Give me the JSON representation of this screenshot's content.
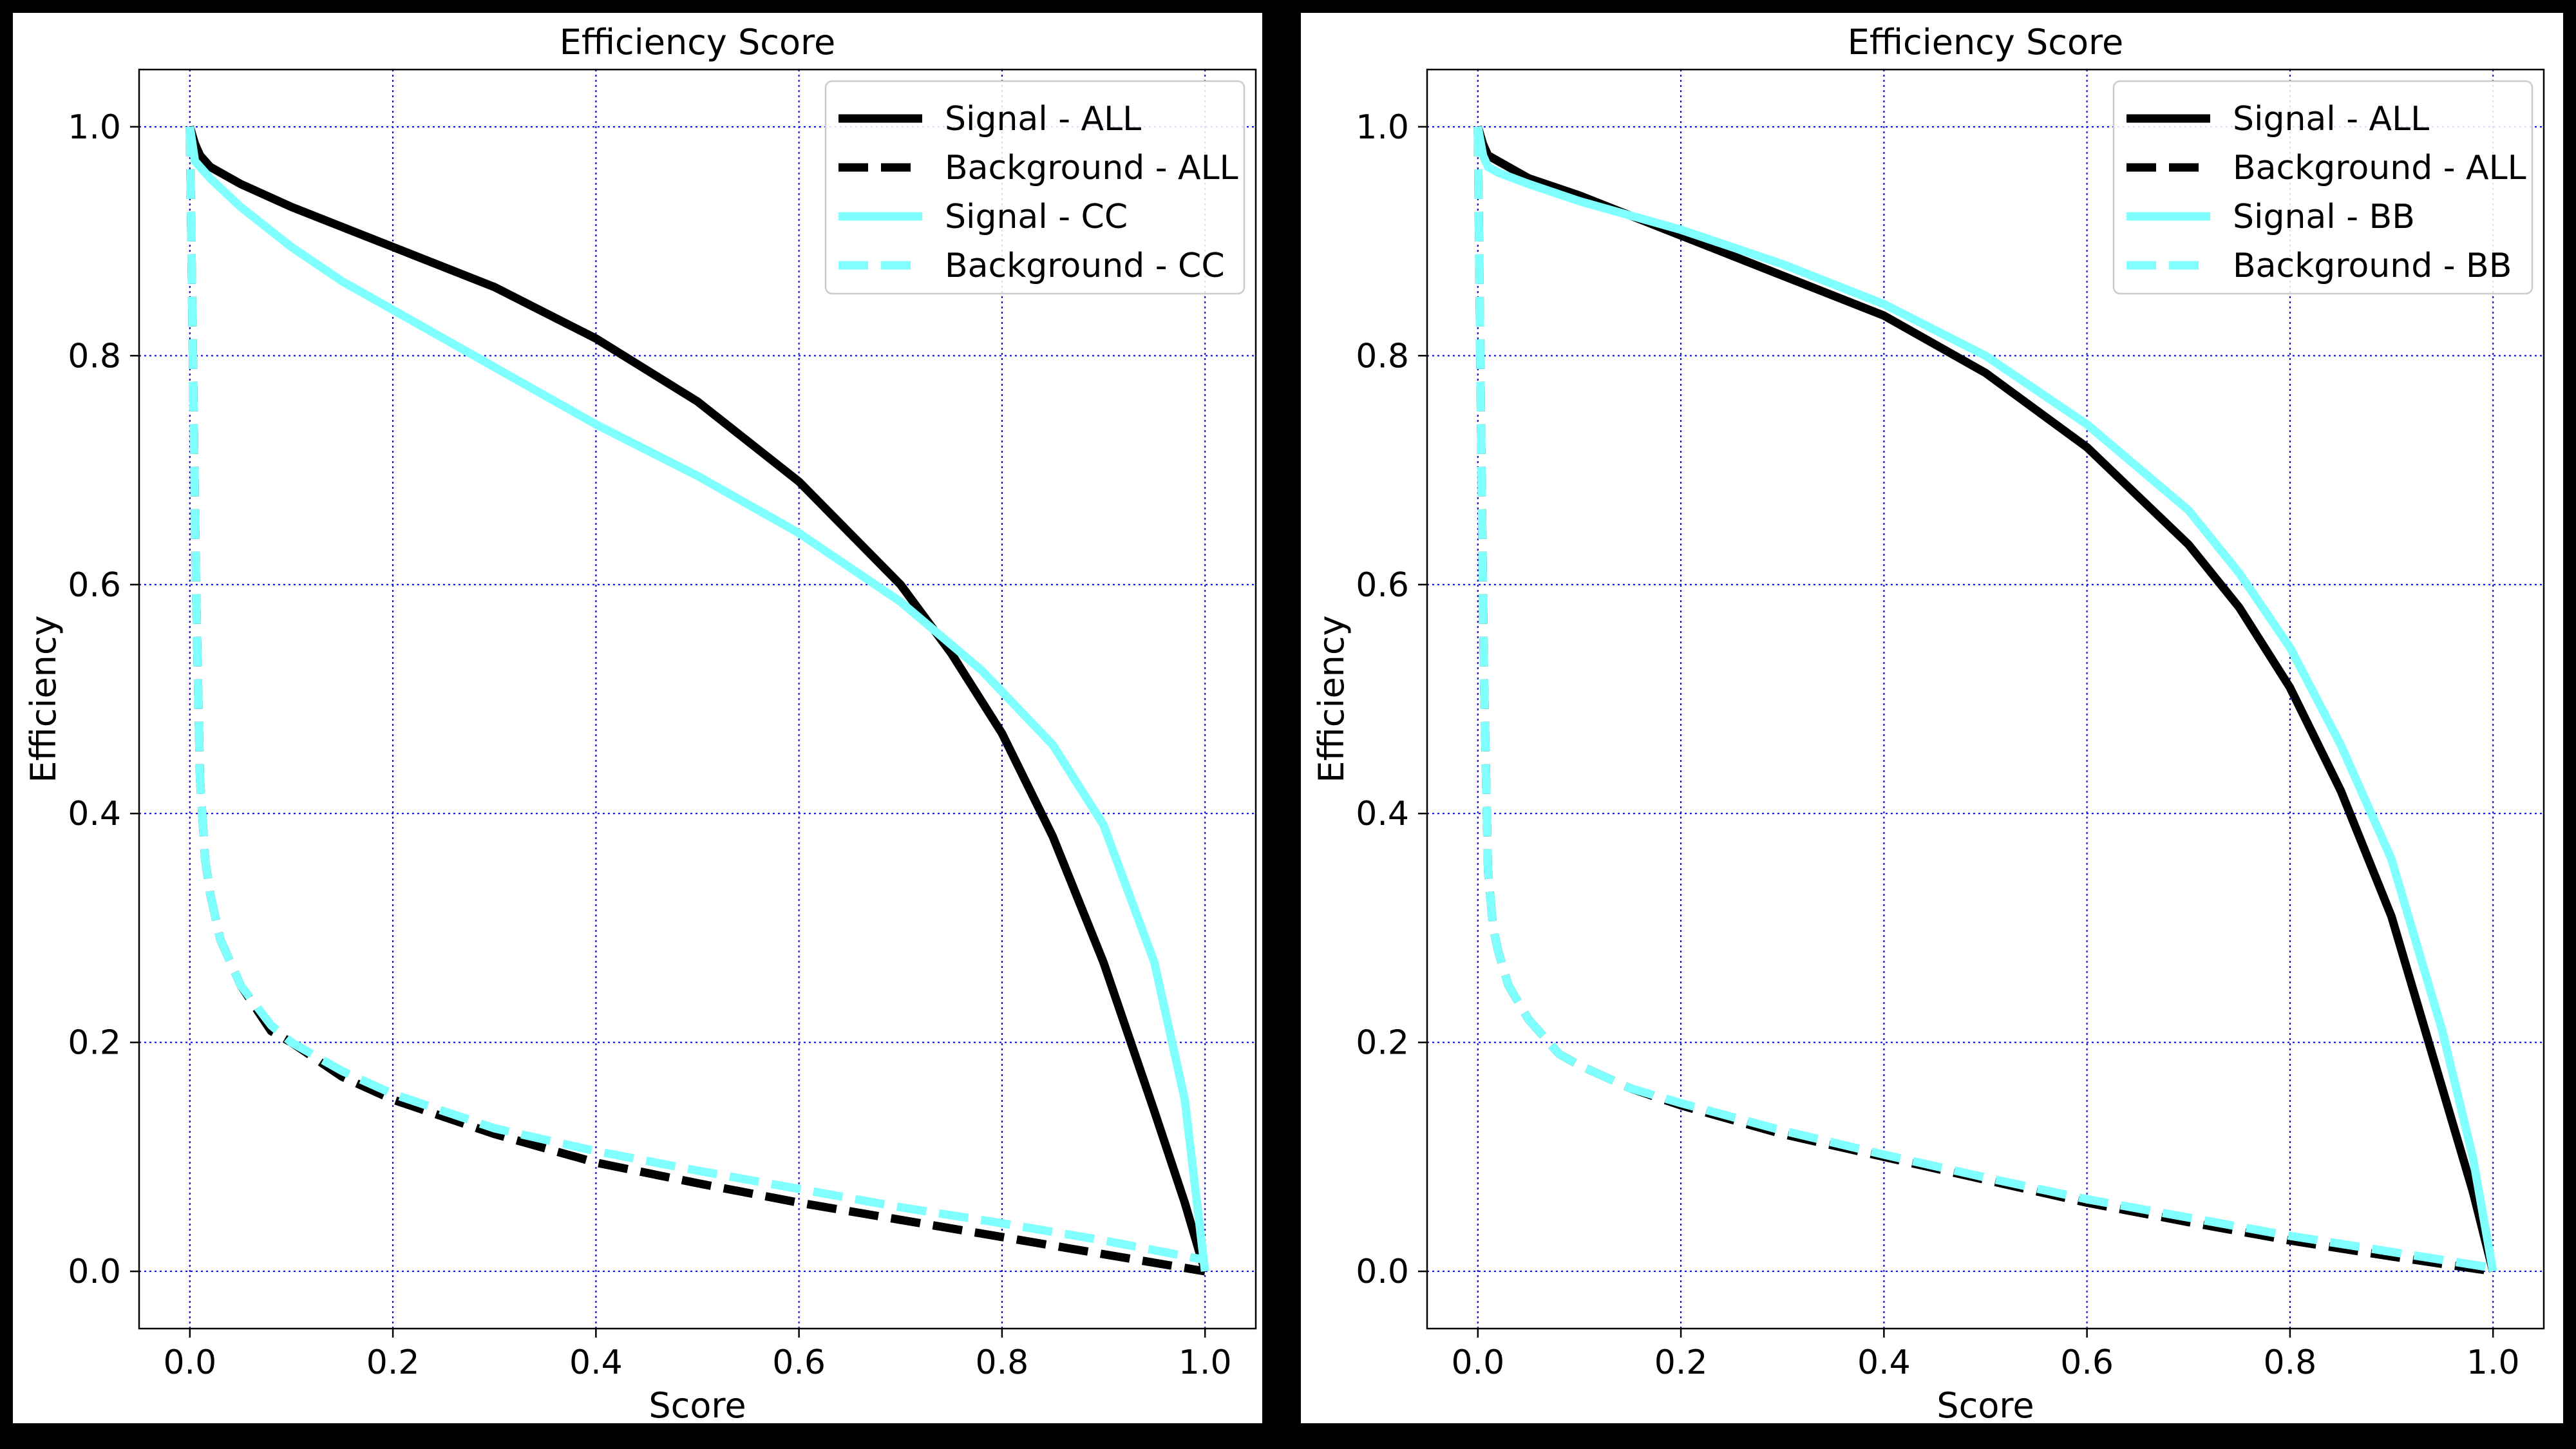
{
  "colors": {
    "all": "#000000",
    "subset": "#80ffff",
    "grid": "#0000cc"
  },
  "chart_data": [
    {
      "type": "line",
      "title": "Efficiency Score",
      "xlabel": "Score",
      "ylabel": "Efficiency",
      "xlim": [
        -0.05,
        1.05
      ],
      "ylim": [
        -0.05,
        1.05
      ],
      "xticks": [
        "0.0",
        "0.2",
        "0.4",
        "0.6",
        "0.8",
        "1.0"
      ],
      "yticks": [
        "0.0",
        "0.2",
        "0.4",
        "0.6",
        "0.8",
        "1.0"
      ],
      "grid": true,
      "legend_position": "top-right",
      "series": [
        {
          "name": "Signal - ALL",
          "color": "#000000",
          "style": "solid",
          "x": [
            0.0,
            0.005,
            0.01,
            0.02,
            0.05,
            0.1,
            0.2,
            0.3,
            0.4,
            0.5,
            0.6,
            0.7,
            0.75,
            0.8,
            0.85,
            0.9,
            0.95,
            0.98,
            1.0
          ],
          "y": [
            1.0,
            0.985,
            0.975,
            0.965,
            0.95,
            0.93,
            0.895,
            0.86,
            0.815,
            0.76,
            0.69,
            0.6,
            0.54,
            0.47,
            0.38,
            0.27,
            0.14,
            0.06,
            0.0
          ]
        },
        {
          "name": "Background - ALL",
          "color": "#000000",
          "style": "dashed",
          "x": [
            0.0,
            0.003,
            0.006,
            0.01,
            0.015,
            0.02,
            0.03,
            0.05,
            0.08,
            0.1,
            0.15,
            0.2,
            0.3,
            0.4,
            0.5,
            0.6,
            0.7,
            0.8,
            0.9,
            1.0
          ],
          "y": [
            1.0,
            0.8,
            0.6,
            0.43,
            0.36,
            0.33,
            0.29,
            0.25,
            0.21,
            0.2,
            0.17,
            0.15,
            0.12,
            0.095,
            0.077,
            0.06,
            0.045,
            0.03,
            0.015,
            0.0
          ]
        },
        {
          "name": "Signal - CC",
          "color": "#80ffff",
          "style": "solid",
          "x": [
            0.0,
            0.005,
            0.01,
            0.02,
            0.05,
            0.1,
            0.15,
            0.2,
            0.3,
            0.4,
            0.5,
            0.6,
            0.7,
            0.78,
            0.85,
            0.9,
            0.95,
            0.98,
            1.0
          ],
          "y": [
            1.0,
            0.97,
            0.965,
            0.955,
            0.93,
            0.895,
            0.865,
            0.84,
            0.79,
            0.74,
            0.695,
            0.645,
            0.585,
            0.525,
            0.46,
            0.39,
            0.27,
            0.15,
            0.0
          ]
        },
        {
          "name": "Background - CC",
          "color": "#80ffff",
          "style": "dashed",
          "x": [
            0.0,
            0.003,
            0.006,
            0.01,
            0.015,
            0.02,
            0.03,
            0.05,
            0.08,
            0.1,
            0.15,
            0.2,
            0.3,
            0.4,
            0.5,
            0.6,
            0.7,
            0.8,
            0.9,
            1.0
          ],
          "y": [
            1.0,
            0.8,
            0.6,
            0.43,
            0.36,
            0.33,
            0.29,
            0.25,
            0.215,
            0.2,
            0.175,
            0.155,
            0.125,
            0.105,
            0.088,
            0.072,
            0.056,
            0.042,
            0.027,
            0.01
          ]
        }
      ]
    },
    {
      "type": "line",
      "title": "Efficiency Score",
      "xlabel": "Score",
      "ylabel": "Efficiency",
      "xlim": [
        -0.05,
        1.05
      ],
      "ylim": [
        -0.05,
        1.05
      ],
      "xticks": [
        "0.0",
        "0.2",
        "0.4",
        "0.6",
        "0.8",
        "1.0"
      ],
      "yticks": [
        "0.0",
        "0.2",
        "0.4",
        "0.6",
        "0.8",
        "1.0"
      ],
      "grid": true,
      "legend_position": "top-right",
      "series": [
        {
          "name": "Signal - ALL",
          "color": "#000000",
          "style": "solid",
          "x": [
            0.0,
            0.005,
            0.01,
            0.02,
            0.05,
            0.1,
            0.2,
            0.3,
            0.4,
            0.5,
            0.6,
            0.7,
            0.75,
            0.8,
            0.85,
            0.9,
            0.95,
            0.98,
            1.0
          ],
          "y": [
            1.0,
            0.985,
            0.975,
            0.97,
            0.955,
            0.94,
            0.905,
            0.87,
            0.835,
            0.785,
            0.72,
            0.635,
            0.58,
            0.51,
            0.42,
            0.31,
            0.16,
            0.07,
            0.0
          ]
        },
        {
          "name": "Background - ALL",
          "color": "#000000",
          "style": "dashed",
          "x": [
            0.0,
            0.003,
            0.006,
            0.01,
            0.015,
            0.02,
            0.03,
            0.05,
            0.08,
            0.1,
            0.15,
            0.2,
            0.3,
            0.4,
            0.5,
            0.6,
            0.7,
            0.8,
            0.9,
            1.0
          ],
          "y": [
            1.0,
            0.75,
            0.52,
            0.35,
            0.3,
            0.28,
            0.25,
            0.22,
            0.19,
            0.18,
            0.16,
            0.145,
            0.12,
            0.1,
            0.08,
            0.06,
            0.043,
            0.027,
            0.013,
            0.0
          ]
        },
        {
          "name": "Signal - BB",
          "color": "#80ffff",
          "style": "solid",
          "x": [
            0.0,
            0.005,
            0.01,
            0.02,
            0.05,
            0.1,
            0.2,
            0.3,
            0.4,
            0.5,
            0.6,
            0.7,
            0.75,
            0.8,
            0.85,
            0.9,
            0.95,
            0.98,
            1.0
          ],
          "y": [
            1.0,
            0.975,
            0.965,
            0.96,
            0.95,
            0.935,
            0.91,
            0.88,
            0.845,
            0.8,
            0.74,
            0.665,
            0.61,
            0.545,
            0.46,
            0.36,
            0.21,
            0.1,
            0.0
          ]
        },
        {
          "name": "Background - BB",
          "color": "#80ffff",
          "style": "dashed",
          "x": [
            0.0,
            0.003,
            0.006,
            0.01,
            0.015,
            0.02,
            0.03,
            0.05,
            0.08,
            0.1,
            0.15,
            0.2,
            0.3,
            0.4,
            0.5,
            0.6,
            0.7,
            0.8,
            0.9,
            1.0
          ],
          "y": [
            1.0,
            0.75,
            0.52,
            0.35,
            0.3,
            0.28,
            0.25,
            0.22,
            0.19,
            0.18,
            0.16,
            0.147,
            0.123,
            0.102,
            0.082,
            0.063,
            0.047,
            0.031,
            0.017,
            0.003
          ]
        }
      ]
    }
  ]
}
